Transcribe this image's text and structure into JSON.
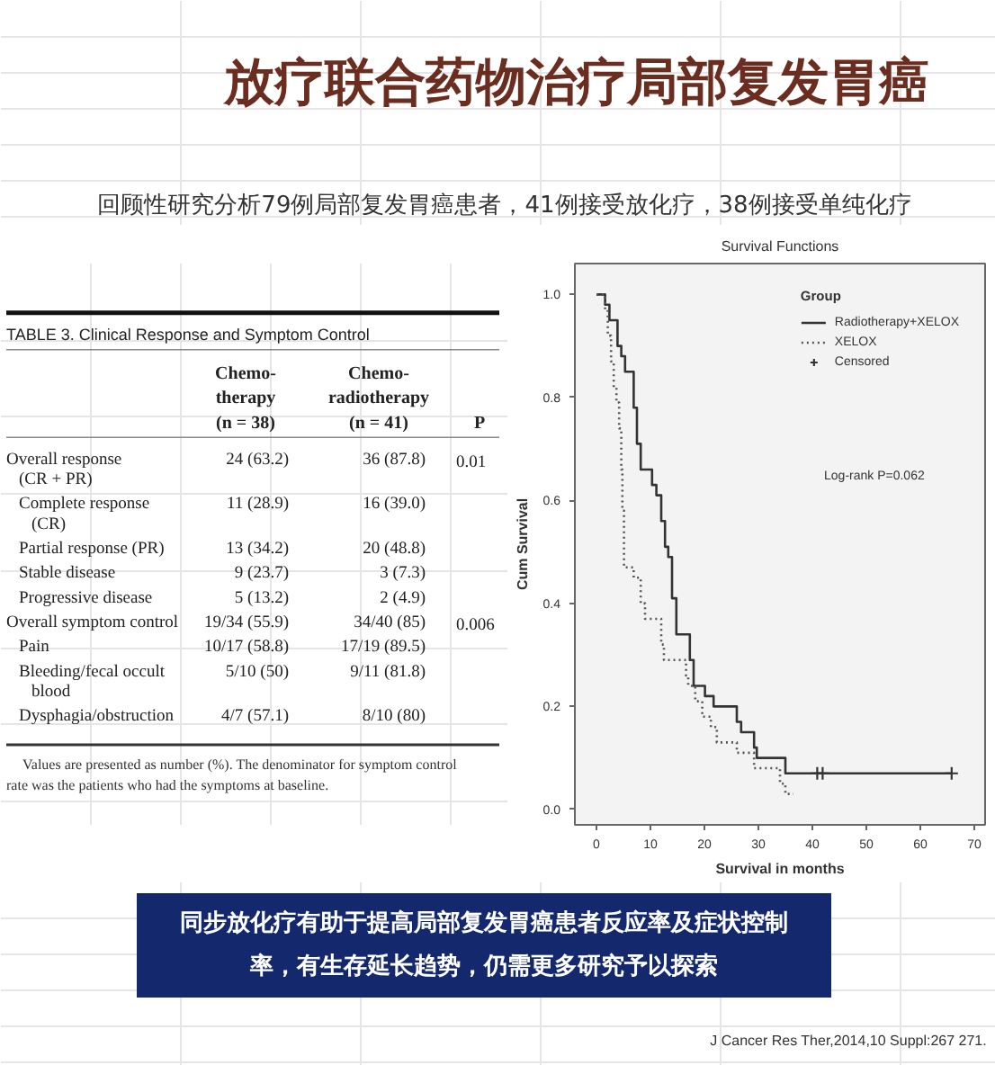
{
  "chart_data": [
    {
      "type": "other",
      "title": "放疗联合药物治疗局部复发胃癌",
      "subtitle": "回顾性研究分析79例局部复发胃癌患者，41例接受放化疗，38例接受单纯化疗",
      "annotations": [
        "同步放化疗有助于提高局部复发胃癌患者反应率及症状控制率，有生存延长趋势，仍需更多研究予以探索",
        "J Cancer Res Ther,2014,10 Suppl:267 271."
      ]
    },
    {
      "type": "other",
      "title": "TABLE 3. Clinical Response and Symptom Control",
      "categories": [
        "Overall response (CR + PR)",
        "Complete response (CR)",
        "Partial response (PR)",
        "Stable disease",
        "Progressive disease",
        "Overall symptom control",
        "Pain",
        "Bleeding/fecal occult blood",
        "Dysphagia/obstruction"
      ],
      "series": [
        {
          "name": "Chemo-therapy (n = 38)",
          "values": [
            24,
            11,
            13,
            9,
            5,
            19,
            10,
            5,
            4
          ],
          "value_labels": [
            "24 (63.2)",
            "11 (28.9)",
            "13 (34.2)",
            "9 (23.7)",
            "5 (13.2)",
            "19/34 (55.9)",
            "10/17 (58.8)",
            "5/10 (50)",
            "4/7 (57.1)"
          ]
        },
        {
          "name": "Chemo-radiotherapy (n = 41)",
          "values": [
            36,
            16,
            20,
            3,
            2,
            34,
            17,
            9,
            8
          ],
          "value_labels": [
            "36 (87.8)",
            "16 (39.0)",
            "20 (48.8)",
            "3 (7.3)",
            "2 (4.9)",
            "34/40 (85)",
            "17/19 (89.5)",
            "9/11 (81.8)",
            "8/10 (80)"
          ]
        },
        {
          "name": "P",
          "values": [
            0.01,
            null,
            null,
            null,
            null,
            0.006,
            null,
            null,
            null
          ],
          "data_labels": true
        }
      ],
      "annotations": [
        "Values are presented as number (%). The denominator for symptom control rate was the patients who had the symptoms at baseline."
      ]
    },
    {
      "type": "step",
      "title": "Survival Functions",
      "xlabel": "Survival in months",
      "ylabel": "Cum Survival",
      "legend_title": "Group",
      "legend": "top right",
      "xlim": [
        -4,
        72
      ],
      "ylim": [
        -0.03,
        1.06
      ],
      "xticks": [
        0,
        10,
        20,
        30,
        40,
        50,
        60,
        70
      ],
      "yticks": [
        {
          "value": 0,
          "label": "0.0"
        },
        0.2,
        0.4,
        0.6,
        0.8,
        {
          "value": 1,
          "label": "1.0"
        }
      ],
      "series": [
        {
          "name": "Radiotherapy+XELOX",
          "color": "#333333",
          "line_style": "solid",
          "x": [
            0,
            1.6,
            2.4,
            3.9,
            4.6,
            5.3,
            6.9,
            7.5,
            8.2,
            10.3,
            11.1,
            12.0,
            12.7,
            13.3,
            14.0,
            14.8,
            17.3,
            18.0,
            20.1,
            21.7,
            26.0,
            26.8,
            29.2,
            29.7,
            35.0,
            65.8
          ],
          "values": [
            1.0,
            0.98,
            0.95,
            0.9,
            0.88,
            0.85,
            0.78,
            0.71,
            0.66,
            0.63,
            0.61,
            0.56,
            0.51,
            0.49,
            0.41,
            0.34,
            0.29,
            0.24,
            0.22,
            0.2,
            0.17,
            0.15,
            0.12,
            0.1,
            0.07,
            0.07
          ]
        },
        {
          "name": "XELOX",
          "color": "#555555",
          "line_style": "dotted",
          "x": [
            0,
            1.6,
            2.1,
            2.7,
            3.2,
            3.7,
            4.2,
            4.6,
            4.8,
            5.1,
            6.9,
            8.2,
            9.0,
            12.0,
            12.5,
            16.6,
            17.0,
            18.3,
            19.6,
            21.2,
            22.3,
            26.0,
            29.2,
            34.0,
            35.0,
            36.5
          ],
          "values": [
            1.0,
            0.97,
            0.92,
            0.87,
            0.82,
            0.79,
            0.74,
            0.66,
            0.58,
            0.47,
            0.45,
            0.4,
            0.37,
            0.32,
            0.29,
            0.26,
            0.24,
            0.21,
            0.18,
            0.16,
            0.13,
            0.11,
            0.08,
            0.05,
            0.03,
            0.03
          ]
        },
        {
          "name": "Censored",
          "type": "scatter",
          "marker": "cross",
          "color": "#333333",
          "x": [
            40.9,
            41.9,
            65.8
          ],
          "values": [
            0.07,
            0.07,
            0.07
          ]
        }
      ],
      "annotations": [
        "Log-rank P=0.062"
      ]
    }
  ]
}
